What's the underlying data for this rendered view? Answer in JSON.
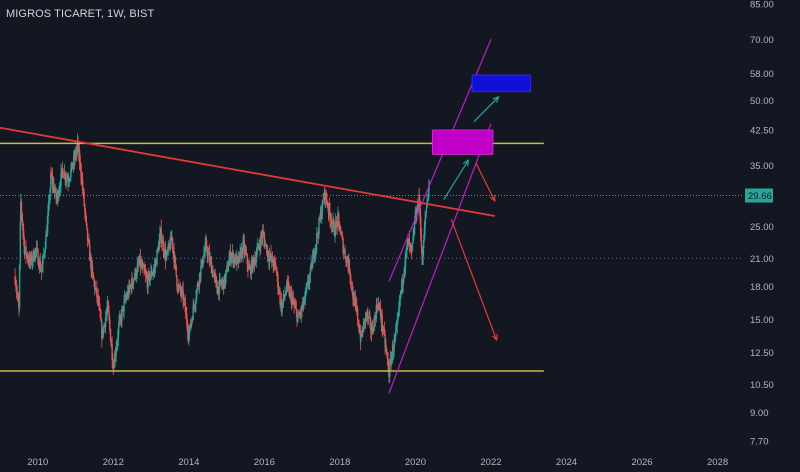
{
  "header": {
    "symbol": "MIGROS TICARET, 1W, BIST"
  },
  "colors": {
    "background": "#131722",
    "up_candle": "#26a69a",
    "down_candle": "#ef5350",
    "trendline": "#e53935",
    "support_resistance": "#c9b94a",
    "channel": "#c41cc4",
    "target_magenta": "#c000c8",
    "target_blue": "#1010d8",
    "arrow_green": "#26a69a",
    "arrow_red": "#e53935",
    "current_price_line": "#26a69a",
    "dotted_mid": "#5d6ab0"
  },
  "chart_data": {
    "type": "candlestick",
    "title": "MIGROS TICARET, 1W, BIST",
    "scale": "log",
    "x": {
      "label": "",
      "range": [
        2009.0,
        2028.7
      ],
      "ticks": [
        "2010",
        "2012",
        "2014",
        "2016",
        "2018",
        "2020",
        "2022",
        "2024",
        "2026",
        "2028"
      ]
    },
    "y": {
      "label": "",
      "range": [
        7.4,
        85.0
      ],
      "ticks": [
        "85.00",
        "70.00",
        "58.00",
        "50.00",
        "42.50",
        "35.00",
        "29.66",
        "25.00",
        "21.00",
        "18.00",
        "15.00",
        "12.50",
        "10.50",
        "9.00",
        "7.70"
      ]
    },
    "current_price": 29.66,
    "price_path": [
      [
        2009.4,
        19.0
      ],
      [
        2009.5,
        15.8
      ],
      [
        2009.55,
        28.5
      ],
      [
        2009.65,
        22.0
      ],
      [
        2009.8,
        20.5
      ],
      [
        2009.95,
        22.0
      ],
      [
        2010.1,
        19.5
      ],
      [
        2010.25,
        25.0
      ],
      [
        2010.35,
        33.0
      ],
      [
        2010.5,
        29.0
      ],
      [
        2010.65,
        34.0
      ],
      [
        2010.8,
        32.5
      ],
      [
        2010.95,
        35.5
      ],
      [
        2011.05,
        39.0
      ],
      [
        2011.15,
        33.5
      ],
      [
        2011.3,
        24.0
      ],
      [
        2011.45,
        19.0
      ],
      [
        2011.6,
        16.5
      ],
      [
        2011.7,
        13.8
      ],
      [
        2011.85,
        16.0
      ],
      [
        2011.95,
        13.0
      ],
      [
        2012.0,
        11.6
      ],
      [
        2012.15,
        14.5
      ],
      [
        2012.3,
        16.5
      ],
      [
        2012.5,
        18.5
      ],
      [
        2012.7,
        20.5
      ],
      [
        2012.9,
        18.5
      ],
      [
        2013.1,
        20.0
      ],
      [
        2013.25,
        24.0
      ],
      [
        2013.4,
        21.0
      ],
      [
        2013.55,
        23.5
      ],
      [
        2013.7,
        18.0
      ],
      [
        2013.85,
        17.0
      ],
      [
        2014.0,
        13.8
      ],
      [
        2014.15,
        16.5
      ],
      [
        2014.3,
        19.5
      ],
      [
        2014.45,
        22.5
      ],
      [
        2014.6,
        20.0
      ],
      [
        2014.75,
        17.8
      ],
      [
        2014.95,
        18.5
      ],
      [
        2015.1,
        21.5
      ],
      [
        2015.3,
        20.5
      ],
      [
        2015.45,
        22.5
      ],
      [
        2015.6,
        19.5
      ],
      [
        2015.75,
        21.0
      ],
      [
        2015.95,
        24.0
      ],
      [
        2016.1,
        21.5
      ],
      [
        2016.3,
        20.0
      ],
      [
        2016.45,
        16.0
      ],
      [
        2016.6,
        18.0
      ],
      [
        2016.75,
        16.5
      ],
      [
        2016.9,
        15.0
      ],
      [
        2017.05,
        16.5
      ],
      [
        2017.2,
        19.0
      ],
      [
        2017.35,
        22.5
      ],
      [
        2017.5,
        27.0
      ],
      [
        2017.6,
        30.0
      ],
      [
        2017.7,
        27.5
      ],
      [
        2017.85,
        24.5
      ],
      [
        2017.95,
        26.0
      ],
      [
        2018.1,
        22.0
      ],
      [
        2018.25,
        20.0
      ],
      [
        2018.35,
        17.0
      ],
      [
        2018.45,
        15.5
      ],
      [
        2018.55,
        13.5
      ],
      [
        2018.7,
        15.5
      ],
      [
        2018.85,
        14.0
      ],
      [
        2019.0,
        16.5
      ],
      [
        2019.1,
        15.0
      ],
      [
        2019.2,
        13.0
      ],
      [
        2019.3,
        11.2
      ],
      [
        2019.4,
        12.8
      ],
      [
        2019.5,
        14.0
      ],
      [
        2019.6,
        17.0
      ],
      [
        2019.7,
        20.0
      ],
      [
        2019.8,
        23.0
      ],
      [
        2019.9,
        21.5
      ],
      [
        2020.0,
        26.5
      ],
      [
        2020.1,
        29.0
      ],
      [
        2020.18,
        20.5
      ],
      [
        2020.27,
        27.0
      ],
      [
        2020.36,
        31.5
      ]
    ],
    "annotations": {
      "resistance_trendline": {
        "from": [
          2008.1,
          44.5
        ],
        "to": [
          2022.1,
          26.5
        ]
      },
      "horizontal_resistance": {
        "price": 39.5,
        "from": 2008.9,
        "to": 2023.4
      },
      "horizontal_support": {
        "price": 11.3,
        "from": 2008.9,
        "to": 2023.4
      },
      "channel_lower": {
        "from": [
          2019.3,
          10.0
        ],
        "to": [
          2022.0,
          44.0
        ]
      },
      "channel_upper": {
        "from": [
          2019.3,
          18.5
        ],
        "to": [
          2022.0,
          70.0
        ]
      },
      "target_box_1": {
        "x": [
          2020.45,
          2022.05
        ],
        "y": [
          37.2,
          42.5
        ]
      },
      "target_box_2": {
        "x": [
          2021.5,
          2023.05
        ],
        "y": [
          52.5,
          57.5
        ]
      },
      "up_arrows": [
        {
          "from": [
            2020.75,
            29.0
          ],
          "to": [
            2021.4,
            36.0
          ]
        },
        {
          "from": [
            2021.55,
            44.5
          ],
          "to": [
            2022.2,
            51.0
          ]
        }
      ],
      "down_arrows": [
        {
          "from": [
            2021.6,
            35.5
          ],
          "to": [
            2022.1,
            28.8
          ]
        },
        {
          "from": [
            2020.95,
            26.0
          ],
          "to": [
            2022.15,
            13.4
          ]
        }
      ]
    }
  },
  "dotted_level": 21.0
}
